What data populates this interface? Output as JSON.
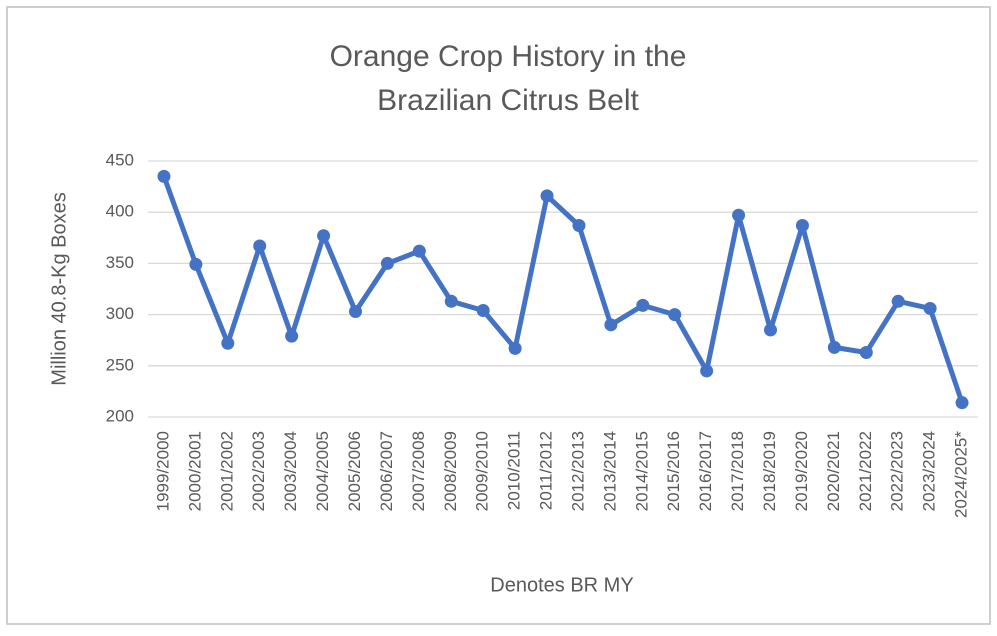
{
  "chart_data": {
    "type": "line",
    "title": [
      "Orange Crop History in the",
      "Brazilian Citrus Belt"
    ],
    "xlabel": "Denotes BR MY",
    "ylabel": "Million 40.8-Kg Boxes",
    "categories": [
      "1999/2000",
      "2000/2001",
      "2001/2002",
      "2002/2003",
      "2003/2004",
      "2004/2005",
      "2005/2006",
      "2006/2007",
      "2007/2008",
      "2008/2009",
      "2009/2010",
      "2010/2011",
      "2011/2012",
      "2012/2013",
      "2013/2014",
      "2014/2015",
      "2015/2016",
      "2016/2017",
      "2017/2018",
      "2018/2019",
      "2019/2020",
      "2020/2021",
      "2021/2022",
      "2022/2023",
      "2023/2024",
      "2024/2025*"
    ],
    "values": [
      435,
      349,
      272,
      367,
      279,
      377,
      303,
      350,
      362,
      313,
      304,
      267,
      416,
      387,
      290,
      309,
      300,
      245,
      397,
      285,
      387,
      268,
      263,
      313,
      306,
      214
    ],
    "color": "#4472c4",
    "ylim": [
      200,
      450
    ],
    "yticks": [
      200,
      250,
      300,
      350,
      400,
      450
    ],
    "grid": true
  }
}
